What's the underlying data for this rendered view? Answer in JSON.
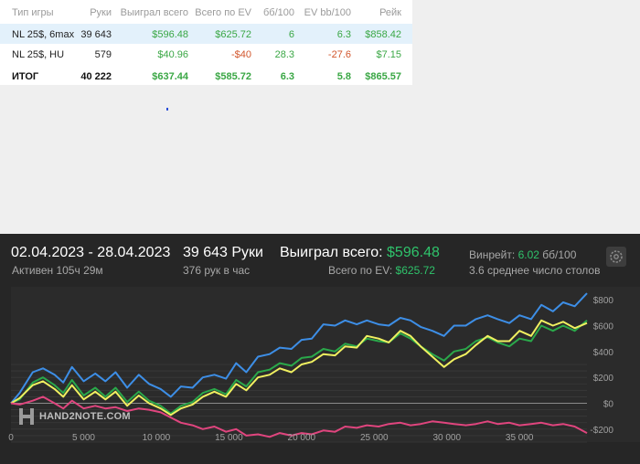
{
  "table": {
    "headers": [
      "Тип игры",
      "Руки",
      "Выиграл всего",
      "Всего по EV",
      "бб/100",
      "EV bb/100",
      "Рейк"
    ],
    "rows": [
      {
        "game": "NL 25$, 6max",
        "hands": "39 643",
        "won": "$596.48",
        "ev": "$625.72",
        "bb100": "6",
        "evbb100": "6.3",
        "rake": "$858.42"
      },
      {
        "game": "NL 25$, HU",
        "hands": "579",
        "won": "$40.96",
        "ev": "-$40",
        "bb100": "28.3",
        "evbb100": "-27.6",
        "rake": "$7.15"
      }
    ],
    "total": {
      "game": "ИТОГ",
      "hands": "40 222",
      "won": "$637.44",
      "ev": "$585.72",
      "bb100": "6.3",
      "evbb100": "5.8",
      "rake": "$865.57"
    }
  },
  "summary": {
    "date_range": "02.04.2023 - 28.04.2023",
    "active": "Активен 105ч 29м",
    "hands": "39 643 Руки",
    "hands_per_hour": "376 рук в час",
    "won_label": "Выиграл всего:",
    "won_value": "$596.48",
    "ev_label": "Всего по EV:",
    "ev_value": "$625.72",
    "winrate_label": "Винрейт:",
    "winrate_value": "6.02",
    "winrate_unit": "бб/100",
    "tables": "3.6 среднее число столов"
  },
  "icons": {
    "settings": "gear-icon",
    "logo": "hand2note-logo-icon"
  },
  "logo_text": "HAND2NOTE.COM",
  "chart_data": {
    "type": "line",
    "xlim": [
      0,
      39643
    ],
    "ylim": [
      -300,
      900
    ],
    "x_ticks": [
      0,
      5000,
      10000,
      15000,
      20000,
      25000,
      30000,
      35000
    ],
    "x_tick_labels": [
      "0",
      "5 000",
      "10 000",
      "15 000",
      "20 000",
      "25 000",
      "30 000",
      "35 000"
    ],
    "y_ticks": [
      -200,
      0,
      200,
      400,
      600,
      800
    ],
    "y_tick_labels": [
      "-$200",
      "$0",
      "$200",
      "$400",
      "$600",
      "$800"
    ],
    "grid": true,
    "series": [
      {
        "color": "#3d8ee6",
        "points": [
          [
            0,
            0
          ],
          [
            600,
            80
          ],
          [
            1500,
            240
          ],
          [
            2200,
            270
          ],
          [
            3000,
            220
          ],
          [
            3600,
            160
          ],
          [
            4200,
            280
          ],
          [
            5000,
            170
          ],
          [
            5800,
            230
          ],
          [
            6500,
            170
          ],
          [
            7200,
            240
          ],
          [
            8000,
            120
          ],
          [
            8800,
            220
          ],
          [
            9500,
            150
          ],
          [
            10300,
            110
          ],
          [
            11000,
            50
          ],
          [
            11700,
            130
          ],
          [
            12500,
            120
          ],
          [
            13200,
            200
          ],
          [
            14000,
            220
          ],
          [
            14800,
            190
          ],
          [
            15500,
            310
          ],
          [
            16200,
            240
          ],
          [
            17000,
            360
          ],
          [
            17800,
            380
          ],
          [
            18500,
            430
          ],
          [
            19300,
            420
          ],
          [
            20000,
            490
          ],
          [
            20700,
            500
          ],
          [
            21500,
            610
          ],
          [
            22300,
            600
          ],
          [
            23000,
            640
          ],
          [
            23800,
            610
          ],
          [
            24500,
            640
          ],
          [
            25300,
            610
          ],
          [
            26000,
            600
          ],
          [
            26800,
            660
          ],
          [
            27500,
            640
          ],
          [
            28200,
            590
          ],
          [
            29000,
            560
          ],
          [
            29800,
            520
          ],
          [
            30500,
            600
          ],
          [
            31300,
            600
          ],
          [
            32000,
            650
          ],
          [
            32800,
            680
          ],
          [
            33500,
            650
          ],
          [
            34300,
            620
          ],
          [
            35000,
            680
          ],
          [
            35800,
            650
          ],
          [
            36500,
            760
          ],
          [
            37300,
            710
          ],
          [
            38000,
            780
          ],
          [
            38800,
            750
          ],
          [
            39643,
            850
          ]
        ]
      },
      {
        "color": "#2aa84a",
        "points": [
          [
            0,
            0
          ],
          [
            600,
            30
          ],
          [
            1500,
            160
          ],
          [
            2200,
            200
          ],
          [
            3000,
            140
          ],
          [
            3600,
            80
          ],
          [
            4200,
            180
          ],
          [
            5000,
            60
          ],
          [
            5800,
            120
          ],
          [
            6500,
            50
          ],
          [
            7200,
            120
          ],
          [
            8000,
            10
          ],
          [
            8800,
            90
          ],
          [
            9500,
            20
          ],
          [
            10300,
            -20
          ],
          [
            11000,
            -80
          ],
          [
            11700,
            -20
          ],
          [
            12500,
            10
          ],
          [
            13200,
            80
          ],
          [
            14000,
            110
          ],
          [
            14800,
            70
          ],
          [
            15500,
            180
          ],
          [
            16200,
            130
          ],
          [
            17000,
            240
          ],
          [
            17800,
            260
          ],
          [
            18500,
            310
          ],
          [
            19300,
            290
          ],
          [
            20000,
            350
          ],
          [
            20700,
            360
          ],
          [
            21500,
            420
          ],
          [
            22300,
            400
          ],
          [
            23000,
            460
          ],
          [
            23800,
            440
          ],
          [
            24500,
            500
          ],
          [
            25300,
            480
          ],
          [
            26000,
            470
          ],
          [
            26800,
            540
          ],
          [
            27500,
            500
          ],
          [
            28200,
            440
          ],
          [
            29000,
            380
          ],
          [
            29800,
            330
          ],
          [
            30500,
            400
          ],
          [
            31300,
            420
          ],
          [
            32000,
            480
          ],
          [
            32800,
            510
          ],
          [
            33500,
            470
          ],
          [
            34300,
            440
          ],
          [
            35000,
            500
          ],
          [
            35800,
            480
          ],
          [
            36500,
            600
          ],
          [
            37300,
            560
          ],
          [
            38000,
            600
          ],
          [
            38800,
            560
          ],
          [
            39643,
            640
          ]
        ]
      },
      {
        "color": "#f0f060",
        "points": [
          [
            0,
            0
          ],
          [
            600,
            40
          ],
          [
            1500,
            140
          ],
          [
            2200,
            170
          ],
          [
            3000,
            110
          ],
          [
            3600,
            50
          ],
          [
            4200,
            140
          ],
          [
            5000,
            30
          ],
          [
            5800,
            90
          ],
          [
            6500,
            30
          ],
          [
            7200,
            90
          ],
          [
            8000,
            -20
          ],
          [
            8800,
            60
          ],
          [
            9500,
            0
          ],
          [
            10300,
            -40
          ],
          [
            11000,
            -90
          ],
          [
            11700,
            -40
          ],
          [
            12500,
            -10
          ],
          [
            13200,
            50
          ],
          [
            14000,
            90
          ],
          [
            14800,
            50
          ],
          [
            15500,
            150
          ],
          [
            16200,
            100
          ],
          [
            17000,
            200
          ],
          [
            17800,
            220
          ],
          [
            18500,
            270
          ],
          [
            19300,
            240
          ],
          [
            20000,
            300
          ],
          [
            20700,
            320
          ],
          [
            21500,
            380
          ],
          [
            22300,
            370
          ],
          [
            23000,
            440
          ],
          [
            23800,
            430
          ],
          [
            24500,
            520
          ],
          [
            25300,
            500
          ],
          [
            26000,
            470
          ],
          [
            26800,
            560
          ],
          [
            27500,
            520
          ],
          [
            28200,
            440
          ],
          [
            29000,
            360
          ],
          [
            29800,
            280
          ],
          [
            30500,
            340
          ],
          [
            31300,
            380
          ],
          [
            32000,
            450
          ],
          [
            32800,
            520
          ],
          [
            33500,
            480
          ],
          [
            34300,
            480
          ],
          [
            35000,
            560
          ],
          [
            35800,
            520
          ],
          [
            36500,
            640
          ],
          [
            37300,
            600
          ],
          [
            38000,
            630
          ],
          [
            38800,
            580
          ],
          [
            39643,
            620
          ]
        ]
      },
      {
        "color": "#e0457e",
        "points": [
          [
            0,
            0
          ],
          [
            600,
            -10
          ],
          [
            1500,
            20
          ],
          [
            2200,
            50
          ],
          [
            3000,
            0
          ],
          [
            3600,
            -40
          ],
          [
            4200,
            20
          ],
          [
            5000,
            -40
          ],
          [
            5800,
            -20
          ],
          [
            6500,
            -40
          ],
          [
            7200,
            -30
          ],
          [
            8000,
            -60
          ],
          [
            8800,
            -40
          ],
          [
            9500,
            -50
          ],
          [
            10300,
            -70
          ],
          [
            11000,
            -110
          ],
          [
            11700,
            -150
          ],
          [
            12500,
            -170
          ],
          [
            13200,
            -200
          ],
          [
            14000,
            -180
          ],
          [
            14800,
            -220
          ],
          [
            15500,
            -200
          ],
          [
            16200,
            -250
          ],
          [
            17000,
            -240
          ],
          [
            17800,
            -260
          ],
          [
            18500,
            -230
          ],
          [
            19300,
            -250
          ],
          [
            20000,
            -230
          ],
          [
            20700,
            -240
          ],
          [
            21500,
            -210
          ],
          [
            22300,
            -220
          ],
          [
            23000,
            -180
          ],
          [
            23800,
            -190
          ],
          [
            24500,
            -170
          ],
          [
            25300,
            -180
          ],
          [
            26000,
            -160
          ],
          [
            26800,
            -150
          ],
          [
            27500,
            -170
          ],
          [
            28200,
            -160
          ],
          [
            29000,
            -140
          ],
          [
            29800,
            -150
          ],
          [
            30500,
            -160
          ],
          [
            31300,
            -170
          ],
          [
            32000,
            -160
          ],
          [
            32800,
            -140
          ],
          [
            33500,
            -160
          ],
          [
            34300,
            -150
          ],
          [
            35000,
            -170
          ],
          [
            35800,
            -160
          ],
          [
            36500,
            -150
          ],
          [
            37300,
            -170
          ],
          [
            38000,
            -160
          ],
          [
            38800,
            -180
          ],
          [
            39643,
            -230
          ]
        ]
      }
    ]
  }
}
